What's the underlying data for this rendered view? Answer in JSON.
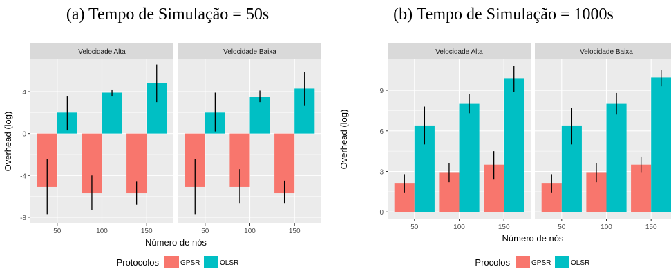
{
  "colors": {
    "GPSR": "#F8766D",
    "OLSR": "#00BFC4",
    "panel_bg": "#EBEBEB",
    "strip_bg": "#D9D9D9",
    "grid": "#FFFFFF"
  },
  "chart_data": [
    {
      "type": "bar",
      "title": "(a) Tempo de Simulação = 50s",
      "xlabel": "Número de nós",
      "ylabel": "Overhead (log)",
      "ylim": [
        -8.6,
        7.1
      ],
      "yticks": [
        -8,
        -4,
        0,
        4
      ],
      "categories": [
        "50",
        "100",
        "150"
      ],
      "legend": {
        "title": "Protocolos",
        "position": "bottom",
        "entries": [
          "GPSR",
          "OLSR"
        ]
      },
      "panels": [
        {
          "strip": "Velocidade Alta",
          "series": [
            {
              "name": "GPSR",
              "values": [
                -5.1,
                -5.7,
                -5.7
              ],
              "err_low": [
                -7.7,
                -7.3,
                -6.8
              ],
              "err_high": [
                -2.4,
                -4.0,
                -4.6
              ]
            },
            {
              "name": "OLSR",
              "values": [
                2.0,
                3.9,
                4.8
              ],
              "err_low": [
                0.3,
                3.6,
                3.0
              ],
              "err_high": [
                3.6,
                4.2,
                6.6
              ]
            }
          ]
        },
        {
          "strip": "Velocidade Baixa",
          "series": [
            {
              "name": "GPSR",
              "values": [
                -5.1,
                -5.1,
                -5.7
              ],
              "err_low": [
                -7.7,
                -6.7,
                -6.7
              ],
              "err_high": [
                -2.4,
                -3.4,
                -4.5
              ]
            },
            {
              "name": "OLSR",
              "values": [
                2.0,
                3.5,
                4.3
              ],
              "err_low": [
                0.2,
                3.0,
                2.7
              ],
              "err_high": [
                3.9,
                4.1,
                5.9
              ]
            }
          ]
        }
      ]
    },
    {
      "type": "bar",
      "title": "(b) Tempo de Simulação = 1000s",
      "xlabel": "Número de nós",
      "ylabel": "Overhead (log)",
      "ylim": [
        -0.55,
        11.3
      ],
      "yticks": [
        0,
        3,
        6,
        9
      ],
      "categories": [
        "50",
        "100",
        "150"
      ],
      "legend": {
        "title": "Procolos",
        "position": "bottom",
        "entries": [
          "GPSR",
          "OLSR"
        ]
      },
      "panels": [
        {
          "strip": "Velocidade Alta",
          "series": [
            {
              "name": "GPSR",
              "values": [
                2.1,
                2.9,
                3.5
              ],
              "err_low": [
                1.4,
                2.2,
                2.4
              ],
              "err_high": [
                2.8,
                3.6,
                4.5
              ]
            },
            {
              "name": "OLSR",
              "values": [
                6.4,
                8.0,
                9.9
              ],
              "err_low": [
                5.0,
                7.3,
                8.9
              ],
              "err_high": [
                7.8,
                8.7,
                10.8
              ]
            }
          ]
        },
        {
          "strip": "Velocidade Baixa",
          "series": [
            {
              "name": "GPSR",
              "values": [
                2.1,
                2.9,
                3.5
              ],
              "err_low": [
                1.4,
                2.2,
                2.9
              ],
              "err_high": [
                2.8,
                3.6,
                4.1
              ]
            },
            {
              "name": "OLSR",
              "values": [
                6.4,
                8.0,
                9.95
              ],
              "err_low": [
                5.0,
                7.2,
                9.3
              ],
              "err_high": [
                7.7,
                8.8,
                10.5
              ]
            }
          ]
        }
      ]
    }
  ]
}
